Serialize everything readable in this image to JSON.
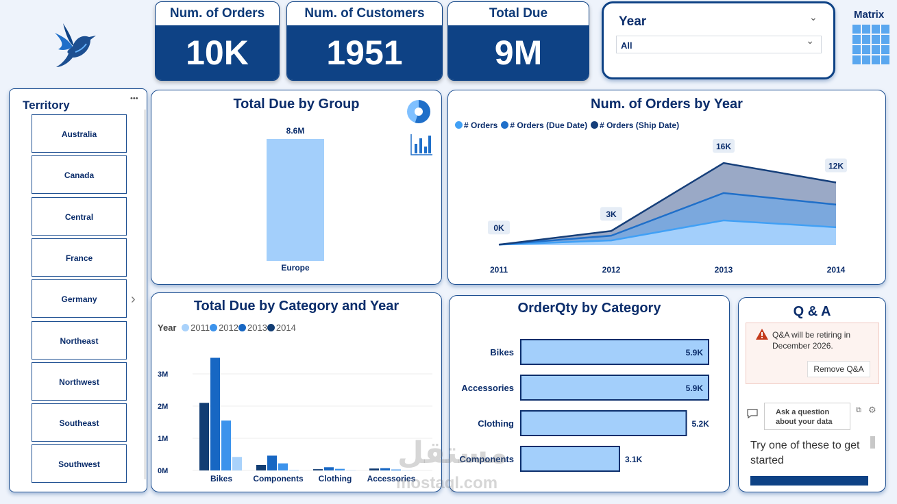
{
  "kpis": {
    "orders": {
      "label": "Num. of Orders",
      "value": "10K"
    },
    "customers": {
      "label": "Num. of Customers",
      "value": "1951"
    },
    "total_due": {
      "label": "Total Due",
      "value": "9M"
    }
  },
  "filter": {
    "label": "Year",
    "selected": "All"
  },
  "matrix_label": "Matrix",
  "territory": {
    "title": "Territory",
    "more": "•••",
    "items": [
      "Australia",
      "Canada",
      "Central",
      "France",
      "Germany",
      "Northeast",
      "Northwest",
      "Southeast",
      "Southwest"
    ]
  },
  "total_due_by_group": {
    "title": "Total Due by Group",
    "chart_data": {
      "type": "bar",
      "categories": [
        "Europe"
      ],
      "values": [
        8.6
      ],
      "data_labels": [
        "8.6M"
      ]
    }
  },
  "orders_by_year": {
    "title": "Num. of Orders by Year",
    "chart_data": {
      "type": "area",
      "x": [
        "2011",
        "2012",
        "2013",
        "2014"
      ],
      "series": [
        {
          "name": "# Orders",
          "values": [
            0.1,
            0.9,
            4.7,
            3.4
          ],
          "color": "#41a0f5"
        },
        {
          "name": "# Orders (Due Date)",
          "values": [
            0.1,
            1.8,
            9.9,
            7.7
          ],
          "color": "#1f6fc9"
        },
        {
          "name": "# Orders (Ship Date)",
          "values": [
            0.1,
            2.7,
            15.6,
            11.9
          ],
          "color": "#163f7a"
        }
      ],
      "data_labels": [
        "0K",
        "3K",
        "16K",
        "12K"
      ]
    }
  },
  "due_by_cat_year": {
    "title": "Total Due by Category and Year",
    "legend_title": "Year",
    "chart_data": {
      "type": "bar",
      "categories": [
        "Bikes",
        "Components",
        "Clothing",
        "Accessories"
      ],
      "series": [
        {
          "name": "2014",
          "values": [
            2.1,
            0.17,
            0.04,
            0.06
          ],
          "color": "#123d73"
        },
        {
          "name": "2013",
          "values": [
            3.5,
            0.46,
            0.1,
            0.07
          ],
          "color": "#1767c3"
        },
        {
          "name": "2012",
          "values": [
            1.55,
            0.22,
            0.05,
            0.03
          ],
          "color": "#3c93ec"
        },
        {
          "name": "2011",
          "values": [
            0.42,
            0.02,
            0.01,
            0.01
          ],
          "color": "#a9d2fb"
        }
      ],
      "yticks": [
        "0M",
        "1M",
        "2M",
        "3M"
      ],
      "ylim": [
        0,
        3.5
      ]
    }
  },
  "orderqty_by_cat": {
    "title": "OrderQty by Category",
    "chart_data": {
      "type": "bar",
      "categories": [
        "Bikes",
        "Accessories",
        "Clothing",
        "Components"
      ],
      "values": [
        5.9,
        5.9,
        5.2,
        3.1
      ],
      "data_labels": [
        "5.9K",
        "5.9K",
        "5.2K",
        "3.1K"
      ]
    }
  },
  "qa": {
    "title": "Q & A",
    "warning": "Q&A will be retiring in December 2026.",
    "remove_label": "Remove Q&A",
    "ask_label": "Ask a question about your data",
    "suggest": "Try one of these to get started"
  },
  "watermark": {
    "arabic": "مستقل",
    "latin": "mostaql.com"
  }
}
